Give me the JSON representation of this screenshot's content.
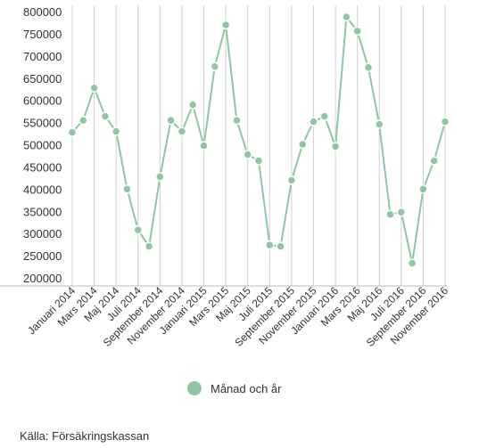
{
  "chart_data": {
    "type": "line",
    "ylim": [
      200000,
      800000
    ],
    "y_ticks": [
      "800000",
      "750000",
      "700000",
      "650000",
      "600000",
      "550000",
      "500000",
      "450000",
      "400000",
      "350000",
      "300000",
      "250000",
      "200000"
    ],
    "x_tick_labels": [
      "Januari 2014",
      "Mars 2014",
      "Maj 2014",
      "Juli 2014",
      "September 2014",
      "November 2014",
      "Januari 2015",
      "Mars 2015",
      "Maj 2015",
      "Juli 2015",
      "September 2015",
      "November 2015",
      "Januari 2016",
      "Mars 2016",
      "Maj 2016",
      "Juli 2016",
      "September 2016",
      "November 2016"
    ],
    "series": [
      {
        "name": "Månad och år",
        "color": "#8fc7a4",
        "values": [
          530000,
          557000,
          630000,
          566000,
          532000,
          402000,
          310000,
          273000,
          430000,
          557000,
          532000,
          592000,
          500000,
          678000,
          772000,
          557000,
          480000,
          466000,
          276000,
          273000,
          422000,
          503000,
          554000,
          566000,
          498000,
          790000,
          758000,
          676000,
          548000,
          345000,
          350000,
          235000,
          402000,
          466000,
          554000
        ]
      }
    ],
    "grid": "vertical",
    "legend": "bottom-center"
  },
  "legend": {
    "label": "Månad och år"
  },
  "source": "Källa: Försäkringskassan"
}
